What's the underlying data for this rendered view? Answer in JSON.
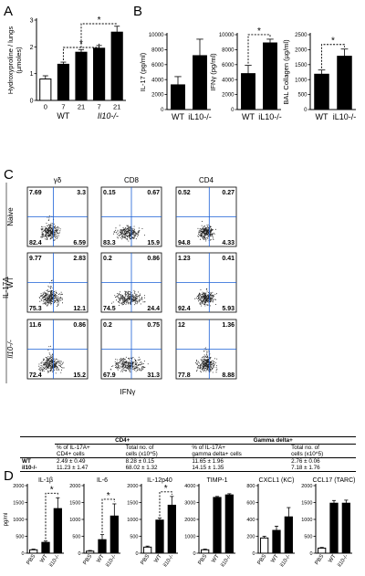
{
  "panels": {
    "A": "A",
    "B": "B",
    "C": "C",
    "D": "D"
  },
  "chart_data": [
    {
      "id": "A",
      "type": "bar",
      "ylabel": "Hydroxyproline / lungs\n(µmoles)",
      "ylim": [
        0,
        3
      ],
      "yticks": [
        0,
        1,
        2,
        3
      ],
      "categories": [
        "0",
        "7",
        "21",
        "7",
        "21"
      ],
      "groups": [
        {
          "label": "WT",
          "span": [
            0,
            2
          ]
        },
        {
          "label": "Il10-/-",
          "span": [
            3,
            4
          ]
        }
      ],
      "values": [
        0.8,
        1.35,
        1.8,
        1.95,
        2.55
      ],
      "errors": [
        0.12,
        0.08,
        0.1,
        0.1,
        0.22
      ],
      "fills": [
        "#ffffff",
        "#000000",
        "#000000",
        "#000000",
        "#000000"
      ],
      "sig": [
        {
          "from": 1,
          "to": 3,
          "label": "*"
        },
        {
          "from": 2,
          "to": 4,
          "label": "*"
        }
      ]
    },
    {
      "id": "B1",
      "type": "bar",
      "ylabel": "IL-17 (pg/ml)",
      "ylim": [
        0,
        10000
      ],
      "yticks": [
        0,
        2000,
        4000,
        6000,
        8000,
        10000
      ],
      "categories": [
        "WT",
        "iL10-/-"
      ],
      "values": [
        3300,
        7200
      ],
      "errors": [
        1100,
        2200
      ],
      "fills": [
        "#000000",
        "#000000"
      ],
      "sig": []
    },
    {
      "id": "B2",
      "type": "bar",
      "ylabel": "IFNγ (pg/ml)",
      "ylim": [
        0,
        10000
      ],
      "yticks": [
        0,
        2000,
        4000,
        6000,
        8000,
        10000
      ],
      "categories": [
        "WT",
        "iL10-/-"
      ],
      "values": [
        4800,
        8900
      ],
      "errors": [
        1100,
        500
      ],
      "fills": [
        "#000000",
        "#000000"
      ],
      "sig": [
        {
          "from": 0,
          "to": 1,
          "label": "*"
        }
      ]
    },
    {
      "id": "B3",
      "type": "bar",
      "ylabel": "BAL Collagen (µg/ml)",
      "ylim": [
        0,
        2500
      ],
      "yticks": [
        0,
        500,
        1000,
        1500,
        2000,
        2500
      ],
      "categories": [
        "WT",
        "iL10-/-"
      ],
      "values": [
        1180,
        1780
      ],
      "errors": [
        140,
        240
      ],
      "fills": [
        "#000000",
        "#000000"
      ],
      "sig": [
        {
          "from": 0,
          "to": 1,
          "label": "*"
        }
      ]
    },
    {
      "id": "C",
      "type": "scatter",
      "xlabel": "IFNγ",
      "ylabel": "IL-17A",
      "col_labels": [
        "γδ",
        "CD8",
        "CD4"
      ],
      "row_labels": [
        "Naive",
        "WT",
        "Il10-/-"
      ],
      "quadrants": [
        [
          [
            "7.69",
            "3.3",
            "82.4",
            "6.59"
          ],
          [
            "0.15",
            "0.67",
            "83.3",
            "15.9"
          ],
          [
            "0.52",
            "0.27",
            "94.8",
            "4.33"
          ]
        ],
        [
          [
            "9.77",
            "2.83",
            "75.3",
            "12.1"
          ],
          [
            "0.2",
            "0.86",
            "74.5",
            "24.4"
          ],
          [
            "1.23",
            "0.41",
            "92.4",
            "5.93"
          ]
        ],
        [
          [
            "11.6",
            "0.86",
            "72.4",
            "15.2"
          ],
          [
            "0.2",
            "0.75",
            "67.9",
            "31.3"
          ],
          [
            "12",
            "1.36",
            "77.8",
            "8.88"
          ]
        ]
      ]
    },
    {
      "id": "D1",
      "type": "bar",
      "title": "IL-1β",
      "ylabel": "pg/ml",
      "ylim": [
        0,
        2000
      ],
      "yticks": [
        0,
        500,
        1000,
        1500,
        2000
      ],
      "categories": [
        "PBS",
        "WT",
        "il10-/-"
      ],
      "values": [
        100,
        320,
        1320
      ],
      "errors": [
        20,
        40,
        320
      ],
      "fills": [
        "#ffffff",
        "#000000",
        "#000000"
      ],
      "sig": [
        {
          "from": 1,
          "to": 2,
          "label": "*"
        }
      ]
    },
    {
      "id": "D2",
      "type": "bar",
      "title": "IL-6",
      "ylim": [
        0,
        2000
      ],
      "yticks": [
        0,
        500,
        1000,
        1500,
        2000
      ],
      "categories": [
        "PBS",
        "WT",
        "il10-/-"
      ],
      "values": [
        60,
        400,
        1100
      ],
      "errors": [
        20,
        150,
        360
      ],
      "fills": [
        "#ffffff",
        "#000000",
        "#000000"
      ],
      "sig": [
        {
          "from": 1,
          "to": 2,
          "label": "*"
        }
      ]
    },
    {
      "id": "D3",
      "type": "bar",
      "title": "IL-12p40",
      "ylim": [
        0,
        2000
      ],
      "yticks": [
        0,
        500,
        1000,
        1500,
        2000
      ],
      "categories": [
        "PBS",
        "WT",
        "il10-/-"
      ],
      "values": [
        180,
        980,
        1420
      ],
      "errors": [
        30,
        60,
        260
      ],
      "fills": [
        "#ffffff",
        "#000000",
        "#000000"
      ],
      "sig": [
        {
          "from": 1,
          "to": 2,
          "label": "*"
        }
      ]
    },
    {
      "id": "D4",
      "type": "bar",
      "title": "TIMP-1",
      "ylim": [
        0,
        4000
      ],
      "yticks": [
        0,
        1000,
        2000,
        3000,
        4000
      ],
      "categories": [
        "PBS",
        "WT",
        "il10-/-"
      ],
      "values": [
        200,
        3300,
        3450
      ],
      "errors": [
        40,
        60,
        70
      ],
      "fills": [
        "#ffffff",
        "#000000",
        "#000000"
      ],
      "sig": []
    },
    {
      "id": "D5",
      "type": "bar",
      "title": "CXCL1 (KC)",
      "ylim": [
        0,
        800
      ],
      "yticks": [
        0,
        200,
        400,
        600,
        800
      ],
      "categories": [
        "PBS",
        "WT",
        "il10-/-"
      ],
      "values": [
        180,
        270,
        430
      ],
      "errors": [
        20,
        50,
        110
      ],
      "fills": [
        "#ffffff",
        "#000000",
        "#000000"
      ],
      "sig": []
    },
    {
      "id": "D6",
      "type": "bar",
      "title": "CCL17 (TARC)",
      "ylim": [
        0,
        2000
      ],
      "yticks": [
        0,
        500,
        1000,
        1500,
        2000
      ],
      "categories": [
        "PBS",
        "WT",
        "il10-/-"
      ],
      "values": [
        150,
        1480,
        1480
      ],
      "errors": [
        20,
        80,
        90
      ],
      "fills": [
        "#ffffff",
        "#000000",
        "#000000"
      ],
      "sig": []
    }
  ],
  "table": {
    "group1": "CD4+",
    "group2": "Gamma delta+",
    "headers": [
      "",
      "% of IL-17A+\nCD4+ cells",
      "Total no. of\ncells (x10^5)",
      "% of IL-17A+\ngamma delta+ cells",
      "Total no. of\ncells (x10^5)"
    ],
    "rows": [
      [
        "WT",
        "2.49 ± 0.49",
        "8.28 ± 0.15",
        "11.65 ± 1.96",
        "2.76 ± 0.06"
      ],
      [
        "il10-/-",
        "11.23 ± 1.47",
        "68.02 ± 1.32",
        "14.15 ± 1.35",
        "7.18 ± 1.76"
      ]
    ]
  }
}
